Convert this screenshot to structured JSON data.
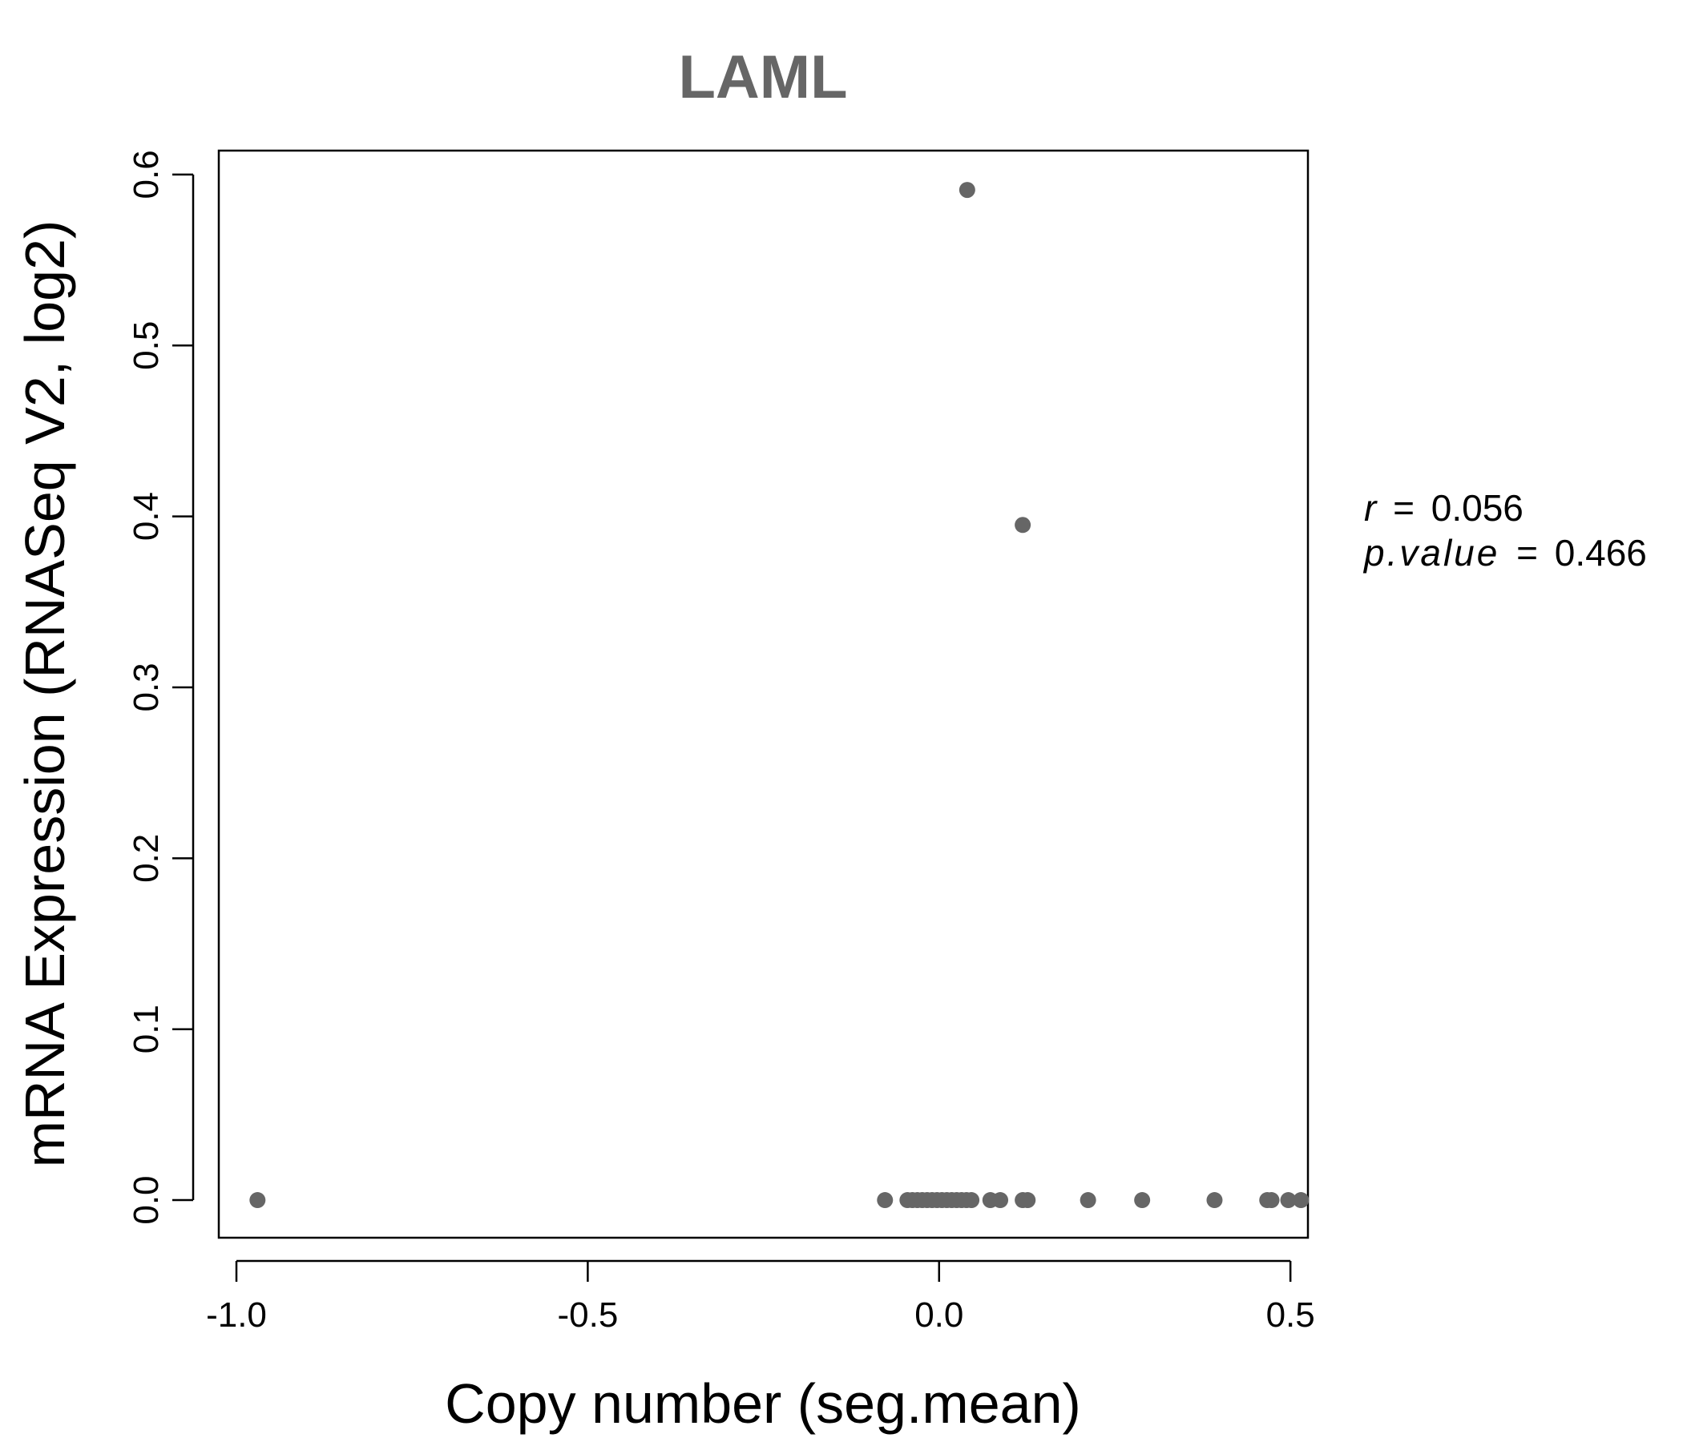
{
  "chart_data": {
    "type": "scatter",
    "title": "LAML",
    "xlabel": "Copy number (seg.mean)",
    "ylabel": "mRNA Expression (RNASeq V2, log2)",
    "xlim": [
      -1.0,
      0.55
    ],
    "ylim": [
      -0.022,
      0.614
    ],
    "xticks": [
      -1.0,
      -0.5,
      0.0,
      0.5
    ],
    "xtick_labels": [
      "-1.0",
      "-0.5",
      "0.0",
      "0.5"
    ],
    "yticks": [
      0.0,
      0.1,
      0.2,
      0.3,
      0.4,
      0.5,
      0.6
    ],
    "ytick_labels": [
      "0.0",
      "0.1",
      "0.2",
      "0.3",
      "0.4",
      "0.5",
      "0.6"
    ],
    "grid": false,
    "point_color": "#666666",
    "points": [
      {
        "x": -0.97,
        "y": 0.0
      },
      {
        "x": -0.077,
        "y": 0.0
      },
      {
        "x": -0.045,
        "y": 0.0
      },
      {
        "x": -0.038,
        "y": 0.0
      },
      {
        "x": -0.031,
        "y": 0.0
      },
      {
        "x": -0.024,
        "y": 0.0
      },
      {
        "x": -0.017,
        "y": 0.0
      },
      {
        "x": -0.01,
        "y": 0.0
      },
      {
        "x": -0.003,
        "y": 0.0
      },
      {
        "x": 0.004,
        "y": 0.0
      },
      {
        "x": 0.011,
        "y": 0.0
      },
      {
        "x": 0.018,
        "y": 0.0
      },
      {
        "x": 0.025,
        "y": 0.0
      },
      {
        "x": 0.032,
        "y": 0.0
      },
      {
        "x": 0.039,
        "y": 0.0
      },
      {
        "x": 0.046,
        "y": 0.0
      },
      {
        "x": 0.073,
        "y": 0.0
      },
      {
        "x": 0.087,
        "y": 0.0
      },
      {
        "x": 0.119,
        "y": 0.0
      },
      {
        "x": 0.126,
        "y": 0.0
      },
      {
        "x": 0.212,
        "y": 0.0
      },
      {
        "x": 0.289,
        "y": 0.0
      },
      {
        "x": 0.392,
        "y": 0.0
      },
      {
        "x": 0.467,
        "y": 0.0
      },
      {
        "x": 0.473,
        "y": 0.0
      },
      {
        "x": 0.497,
        "y": 0.0
      },
      {
        "x": 0.515,
        "y": 0.0
      },
      {
        "x": 0.04,
        "y": 0.591
      },
      {
        "x": 0.119,
        "y": 0.395
      }
    ],
    "annotations": {
      "r_label": "r",
      "r_value": "0.056",
      "p_label": "p.value",
      "p_value": "0.466",
      "equals": "="
    }
  }
}
